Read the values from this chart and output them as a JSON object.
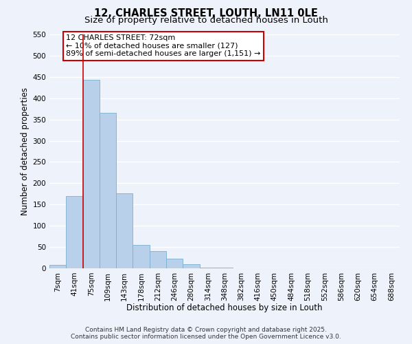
{
  "title_line1": "12, CHARLES STREET, LOUTH, LN11 0LE",
  "title_line2": "Size of property relative to detached houses in Louth",
  "xlabel": "Distribution of detached houses by size in Louth",
  "ylabel": "Number of detached properties",
  "bar_labels": [
    "7sqm",
    "41sqm",
    "75sqm",
    "109sqm",
    "143sqm",
    "178sqm",
    "212sqm",
    "246sqm",
    "280sqm",
    "314sqm",
    "348sqm",
    "382sqm",
    "416sqm",
    "450sqm",
    "484sqm",
    "518sqm",
    "552sqm",
    "586sqm",
    "620sqm",
    "654sqm",
    "688sqm"
  ],
  "bar_values": [
    8,
    170,
    443,
    365,
    177,
    55,
    40,
    22,
    10,
    2,
    1,
    0,
    0,
    0,
    0,
    0,
    0,
    0,
    0,
    0,
    0
  ],
  "bar_color": "#b8d0ea",
  "bar_edge_color": "#7aaed0",
  "ylim": [
    0,
    550
  ],
  "yticks": [
    0,
    50,
    100,
    150,
    200,
    250,
    300,
    350,
    400,
    450,
    500,
    550
  ],
  "vline_x_bar_idx": 2,
  "vline_color": "#cc0000",
  "annotation_line1": "12 CHARLES STREET: 72sqm",
  "annotation_line2": "← 10% of detached houses are smaller (127)",
  "annotation_line3": "89% of semi-detached houses are larger (1,151) →",
  "footer_line1": "Contains HM Land Registry data © Crown copyright and database right 2025.",
  "footer_line2": "Contains public sector information licensed under the Open Government Licence v3.0.",
  "background_color": "#eef2fb",
  "grid_color": "#ffffff",
  "title_fontsize": 10.5,
  "subtitle_fontsize": 9.5,
  "axis_label_fontsize": 8.5,
  "tick_fontsize": 7.5,
  "annotation_fontsize": 8,
  "footer_fontsize": 6.5
}
